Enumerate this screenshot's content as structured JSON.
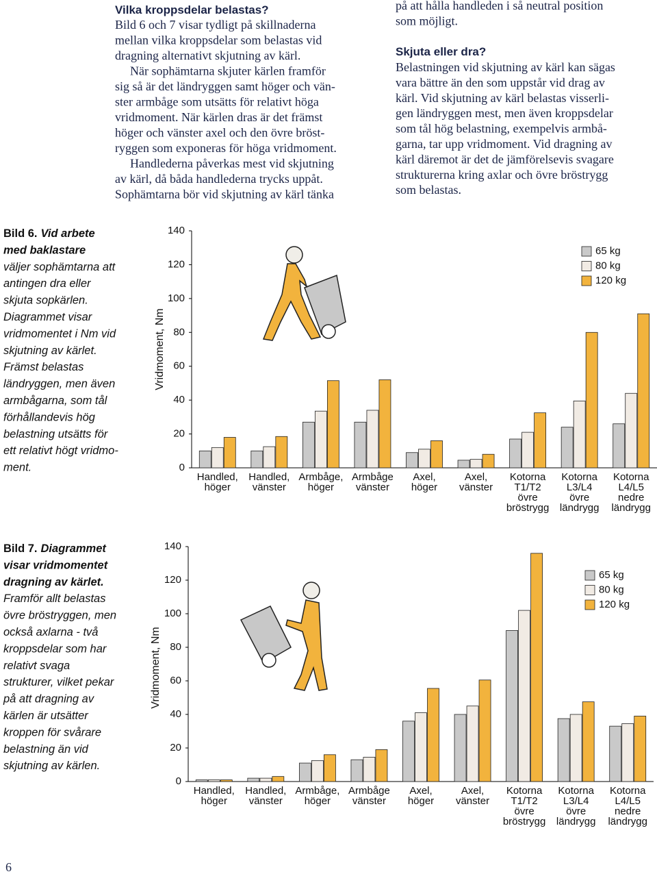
{
  "middle_column": {
    "heading": "Vilka kroppsdelar belastas?",
    "paragraphs": [
      [
        "Bild 6 och 7 visar tydligt på skillnaderna",
        "mellan vilka kroppsdelar som belastas vid",
        "dragning alternativt skjutning av kärl."
      ],
      [
        "När sophämtarna skjuter kärlen framför",
        "sig så är det ländryggen samt höger och vän-",
        "ster armbåge som utsätts för relativt höga",
        "vridmoment. När kärlen dras är det främst",
        "höger och vänster axel och den övre bröst-",
        "ryggen som exponeras för höga vridmoment."
      ],
      [
        "Handlederna påverkas mest vid skjutning",
        "av kärl, då båda handlederna trycks uppåt.",
        "Sophämtarna bör vid skjutning av kärl tänka"
      ]
    ]
  },
  "right_column": {
    "continued_lines": [
      "på att hålla handleden i så neutral position",
      "som möjligt."
    ],
    "heading": "Skjuta eller dra?",
    "lines": [
      "Belastningen vid skjutning av kärl kan sägas",
      "vara bättre än den som uppstår vid drag av",
      "kärl. Vid skjutning av kärl belastas visserli-",
      "gen ländryggen mest, men även kroppsdelar",
      "som tål hög belastning, exempelvis armbå-",
      "garna, tar upp vridmoment. Vid dragning av",
      "kärl däremot  är det de jämförelsevis svagare",
      "strukturerna kring axlar och övre bröstrygg",
      "som belastas."
    ]
  },
  "captions": [
    {
      "label": "Bild 6.",
      "bold_lines": [
        "Vid arbete",
        "med baklastare"
      ],
      "lines": [
        "väljer sophämtarna att",
        "antingen dra eller",
        "skjuta sopkärlen.",
        "Diagrammet visar",
        "vridmomentet i Nm vid",
        "skjutning av kärlet.",
        "Främst belastas",
        "ländryggen, men även",
        "armbågarna, som tål",
        "förhållandevis hög",
        "belastning utsätts för",
        "ett relativt högt vridmo-",
        "ment."
      ]
    },
    {
      "label": "Bild 7.",
      "bold_lines": [
        "Diagrammet",
        "visar vridmomentet",
        "dragning av kärlet."
      ],
      "lines": [
        "Framför allt belastas",
        "övre bröstryggen, men",
        "också axlarna - två",
        "kroppsdelar som har",
        "relativt svaga",
        "strukturer, vilket pekar",
        "på att dragning av",
        "kärlen är utsätter",
        "kroppen för svårare",
        "belastning än vid",
        "skjutning av kärlen."
      ]
    }
  ],
  "page_number": "6",
  "chart_data": [
    {
      "type": "bar",
      "y_label": "Vridmoment, Nm",
      "categories": [
        [
          "Handled,",
          "höger"
        ],
        [
          "Handled,",
          "vänster"
        ],
        [
          "Armbåge,",
          "höger"
        ],
        [
          "Armbåge",
          "vänster"
        ],
        [
          "Axel,",
          "höger"
        ],
        [
          "Axel,",
          "vänster"
        ],
        [
          "Kotorna",
          "T1/T2",
          "övre",
          "bröstrygg"
        ],
        [
          "Kotorna",
          "L3/L4",
          "övre",
          "ländrygg"
        ],
        [
          "Kotorna",
          "L4/L5",
          "nedre",
          "ländrygg"
        ]
      ],
      "series": [
        {
          "name": "65 kg",
          "color": "#c9c9c9",
          "values": [
            10,
            10,
            27,
            27,
            9,
            4.5,
            17,
            24,
            26
          ]
        },
        {
          "name": "80 kg",
          "color": "#f1ebe4",
          "values": [
            12,
            12.5,
            33.5,
            34,
            11,
            5,
            21,
            39.5,
            44
          ]
        },
        {
          "name": "120 kg",
          "color": "#f2b33d",
          "values": [
            18,
            18.5,
            51.5,
            52,
            16,
            8,
            32.5,
            80,
            91
          ]
        }
      ],
      "ylim": [
        0,
        140
      ],
      "yticks": [
        0,
        20,
        40,
        60,
        80,
        100,
        120,
        140
      ]
    },
    {
      "type": "bar",
      "y_label": "Vridmoment, Nm",
      "categories": [
        [
          "Handled,",
          "höger"
        ],
        [
          "Handled,",
          "vänster"
        ],
        [
          "Armbåge,",
          "höger"
        ],
        [
          "Armbåge",
          "vänster"
        ],
        [
          "Axel,",
          "höger"
        ],
        [
          "Axel,",
          "vänster"
        ],
        [
          "Kotorna",
          "T1/T2",
          "övre",
          "bröstrygg"
        ],
        [
          "Kotorna",
          "L3/L4",
          "övre",
          "ländrygg"
        ],
        [
          "Kotorna",
          "L4/L5",
          "nedre",
          "ländrygg"
        ]
      ],
      "series": [
        {
          "name": "65 kg",
          "color": "#c9c9c9",
          "values": [
            1,
            2,
            11,
            13,
            36,
            40,
            90,
            37.5,
            33
          ]
        },
        {
          "name": "80 kg",
          "color": "#f1ebe4",
          "values": [
            1,
            2,
            12.5,
            14.5,
            41,
            45,
            102,
            40,
            34.5
          ]
        },
        {
          "name": "120 kg",
          "color": "#f2b33d",
          "values": [
            1,
            3,
            16,
            19,
            55.5,
            60.5,
            136,
            47.5,
            39
          ]
        }
      ],
      "ylim": [
        0,
        140
      ],
      "yticks": [
        0,
        20,
        40,
        60,
        80,
        100,
        120,
        140
      ]
    }
  ]
}
